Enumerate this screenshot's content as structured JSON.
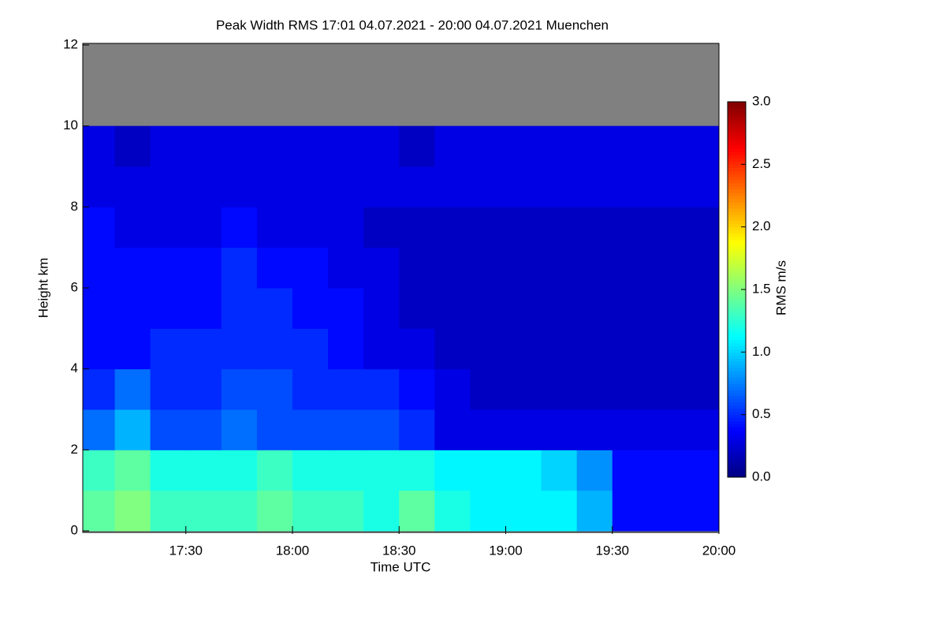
{
  "chart_data": {
    "type": "heatmap",
    "title": "Peak Width RMS   17:01 04.07.2021 - 20:00 04.07.2021 Muenchen",
    "xlabel": "Time UTC",
    "ylabel": "Height km",
    "colorbar_label": "RMS m/s",
    "colormap": "jet",
    "nan_color": "#808080",
    "x": [
      17.0167,
      17.1667,
      17.3333,
      17.5,
      17.6667,
      17.8333,
      18,
      18.1667,
      18.3333,
      18.5,
      18.6667,
      18.8333,
      19,
      19.1667,
      19.3333,
      19.5,
      19.6667,
      19.8333,
      20
    ],
    "y": [
      0,
      1,
      2,
      3,
      4,
      5,
      6,
      7,
      8,
      9,
      10,
      11,
      12
    ],
    "z": [
      [
        1.4,
        1.5,
        1.3,
        1.3,
        1.3,
        1.4,
        1.3,
        1.3,
        1.2,
        1.4,
        1.2,
        1.1,
        1.1,
        1.1,
        0.9,
        0.4,
        0.4,
        0.4
      ],
      [
        1.3,
        1.4,
        1.2,
        1.2,
        1.2,
        1.3,
        1.2,
        1.2,
        1.2,
        1.2,
        1.1,
        1.1,
        1.1,
        1.0,
        0.8,
        0.4,
        0.4,
        0.4
      ],
      [
        0.7,
        0.9,
        0.6,
        0.6,
        0.7,
        0.6,
        0.6,
        0.6,
        0.6,
        0.5,
        0.3,
        0.3,
        0.3,
        0.3,
        0.3,
        0.3,
        0.3,
        0.3
      ],
      [
        0.5,
        0.7,
        0.5,
        0.5,
        0.6,
        0.6,
        0.5,
        0.5,
        0.5,
        0.4,
        0.3,
        0.2,
        0.2,
        0.2,
        0.2,
        0.2,
        0.2,
        0.2
      ],
      [
        0.4,
        0.4,
        0.5,
        0.5,
        0.5,
        0.5,
        0.5,
        0.4,
        0.3,
        0.3,
        0.2,
        0.2,
        0.2,
        0.2,
        0.2,
        0.2,
        0.2,
        0.2
      ],
      [
        0.4,
        0.4,
        0.4,
        0.4,
        0.5,
        0.5,
        0.4,
        0.4,
        0.3,
        0.2,
        0.2,
        0.2,
        0.2,
        0.2,
        0.2,
        0.2,
        0.2,
        0.2
      ],
      [
        0.4,
        0.4,
        0.4,
        0.4,
        0.5,
        0.4,
        0.4,
        0.3,
        0.3,
        0.2,
        0.2,
        0.2,
        0.2,
        0.2,
        0.2,
        0.2,
        0.2,
        0.2
      ],
      [
        0.4,
        0.3,
        0.3,
        0.3,
        0.4,
        0.3,
        0.3,
        0.3,
        0.2,
        0.2,
        0.2,
        0.2,
        0.2,
        0.2,
        0.2,
        0.2,
        0.2,
        0.2
      ],
      [
        0.3,
        0.3,
        0.3,
        0.3,
        0.3,
        0.3,
        0.3,
        0.3,
        0.3,
        0.3,
        0.3,
        0.3,
        0.3,
        0.3,
        0.3,
        0.3,
        0.3,
        0.3
      ],
      [
        0.3,
        0.2,
        0.3,
        0.3,
        0.3,
        0.3,
        0.3,
        0.3,
        0.3,
        0.2,
        0.3,
        0.3,
        0.3,
        0.3,
        0.3,
        0.3,
        0.3,
        0.3
      ],
      [
        null,
        null,
        null,
        null,
        null,
        null,
        null,
        null,
        null,
        null,
        null,
        null,
        null,
        null,
        null,
        null,
        null,
        null
      ],
      [
        null,
        null,
        null,
        null,
        null,
        null,
        null,
        null,
        null,
        null,
        null,
        null,
        null,
        null,
        null,
        null,
        null,
        null
      ]
    ],
    "xlim": [
      17.0167,
      20
    ],
    "xticks": [
      {
        "value": 17.5,
        "label": "17:30"
      },
      {
        "value": 18,
        "label": "18:00"
      },
      {
        "value": 18.5,
        "label": "18:30"
      },
      {
        "value": 19,
        "label": "19:00"
      },
      {
        "value": 19.5,
        "label": "19:30"
      },
      {
        "value": 20,
        "label": "20:00"
      }
    ],
    "ylim": [
      0,
      12
    ],
    "yticks": [
      0,
      2,
      4,
      6,
      8,
      10,
      12
    ],
    "zlim": [
      0,
      3
    ],
    "zticks": [
      {
        "value": 0,
        "label": "0.0"
      },
      0.5,
      {
        "value": 1,
        "label": "1.0"
      },
      1.5,
      {
        "value": 2,
        "label": "2.0"
      },
      2.5,
      {
        "value": 3,
        "label": "3.0"
      }
    ]
  }
}
